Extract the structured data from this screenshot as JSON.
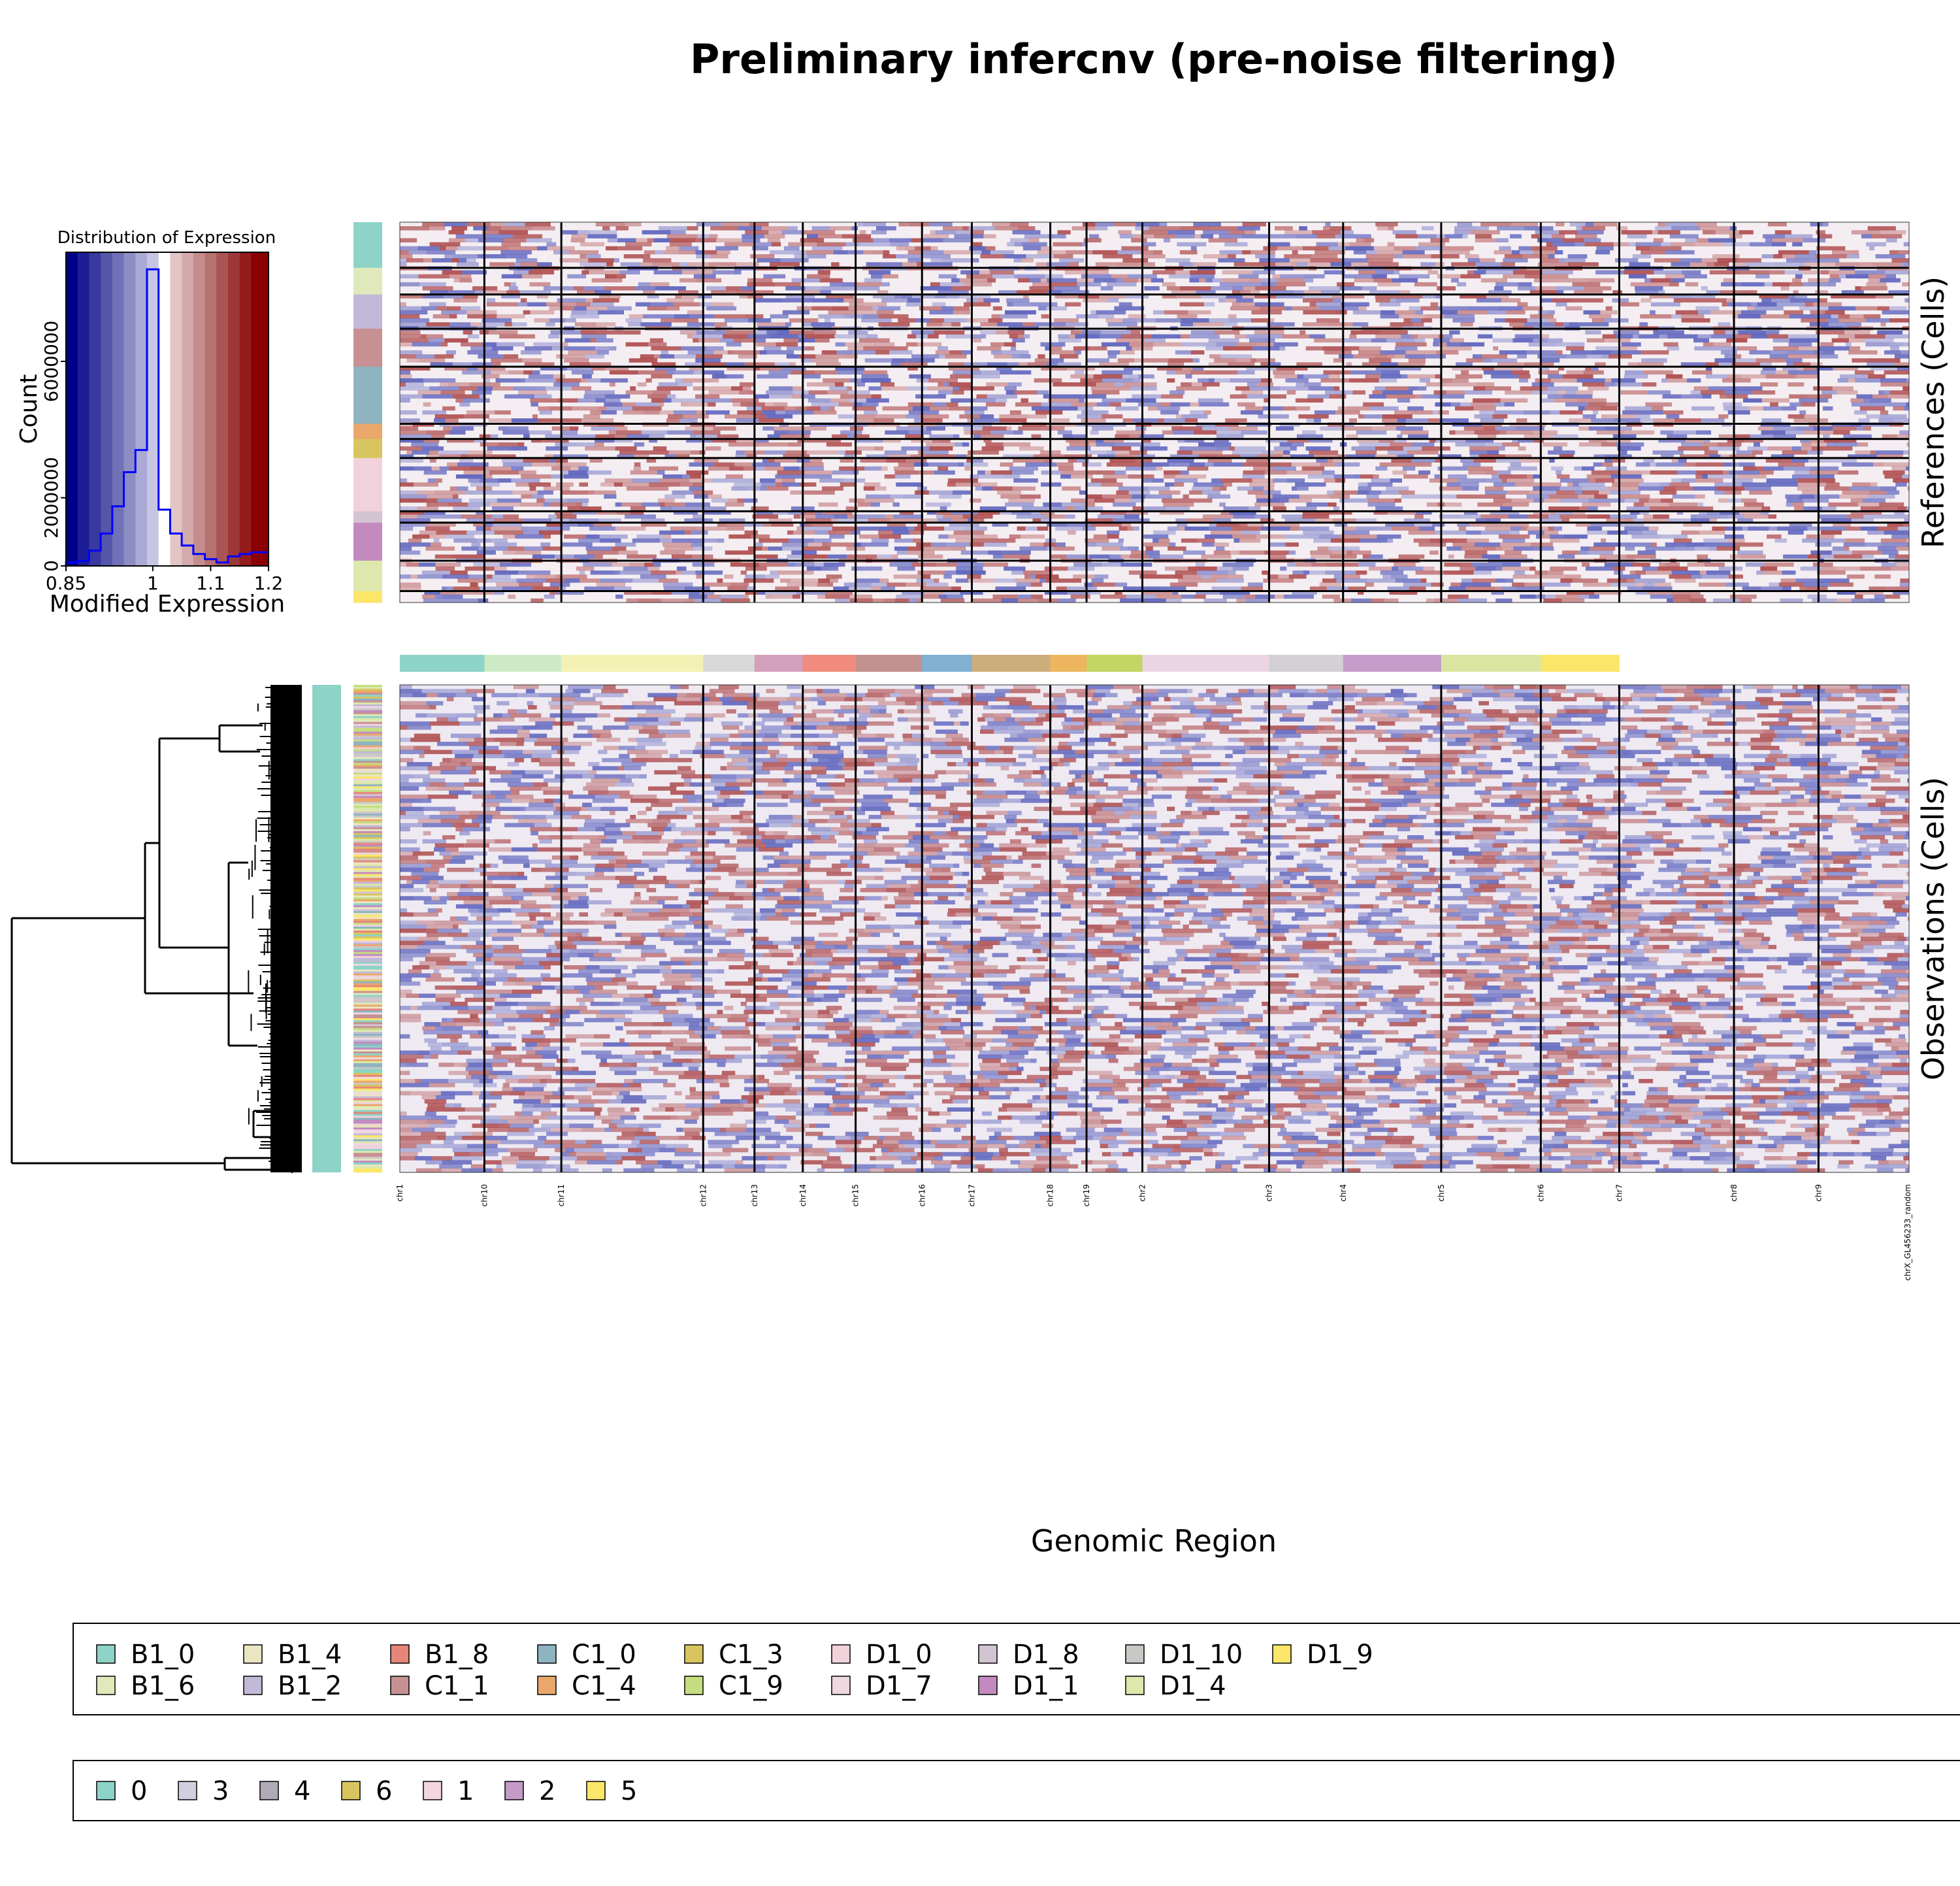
{
  "title": "Preliminary infercnv (pre-noise filtering)",
  "chart_data": {
    "type": "heatmap",
    "title": "Preliminary infercnv (pre-noise filtering)",
    "xlabel": "Genomic Region",
    "references_label": "References (Cells)",
    "observations_label": "Observations (Cells)",
    "chromosomes": [
      {
        "name": "chr1",
        "start": 0.0,
        "end": 0.056,
        "color": "#8dd3c7"
      },
      {
        "name": "chr10",
        "start": 0.056,
        "end": 0.107,
        "color": "#ccebc5"
      },
      {
        "name": "chr11",
        "start": 0.107,
        "end": 0.201,
        "color": "#f3f2b4"
      },
      {
        "name": "chr12",
        "start": 0.201,
        "end": 0.235,
        "color": "#d9d9d9"
      },
      {
        "name": "chr13",
        "start": 0.235,
        "end": 0.267,
        "color": "#d3a0bc"
      },
      {
        "name": "chr14",
        "start": 0.267,
        "end": 0.302,
        "color": "#f08b7e"
      },
      {
        "name": "chr15",
        "start": 0.302,
        "end": 0.346,
        "color": "#c2918f"
      },
      {
        "name": "chr16",
        "start": 0.346,
        "end": 0.379,
        "color": "#80b1d3"
      },
      {
        "name": "chr17",
        "start": 0.379,
        "end": 0.431,
        "color": "#ccad7c"
      },
      {
        "name": "chr18",
        "start": 0.431,
        "end": 0.455,
        "color": "#edb65e"
      },
      {
        "name": "chr19",
        "start": 0.455,
        "end": 0.492,
        "color": "#c3d664"
      },
      {
        "name": "chr2",
        "start": 0.492,
        "end": 0.576,
        "color": "#ebd5e2"
      },
      {
        "name": "chr3",
        "start": 0.576,
        "end": 0.625,
        "color": "#d4d0d4"
      },
      {
        "name": "chr4",
        "start": 0.625,
        "end": 0.69,
        "color": "#c59cc9"
      },
      {
        "name": "chr5",
        "start": 0.69,
        "end": 0.756,
        "color": "#dae5a2"
      },
      {
        "name": "chr6",
        "start": 0.756,
        "end": 0.808,
        "color": "#fbe66a"
      },
      {
        "name": "chr7",
        "start": 0.808,
        "end": 0.884,
        "color": "#ffffff"
      },
      {
        "name": "chr8",
        "start": 0.884,
        "end": 0.94,
        "color": "#ffffff"
      },
      {
        "name": "chr9",
        "start": 0.94,
        "end": 0.999,
        "color": "#ffffff"
      },
      {
        "name": "chrX_GL456233_random",
        "start": 0.999,
        "end": 1.0,
        "color": "#ffffff"
      }
    ],
    "reference_groups": [
      {
        "name": "B1_0",
        "fraction": 0.12,
        "color": "#8dd3c7"
      },
      {
        "name": "B1_6",
        "fraction": 0.07,
        "color": "#dfe9bb"
      },
      {
        "name": "B1_2",
        "fraction": 0.09,
        "color": "#c2b9d9"
      },
      {
        "name": "C1_1",
        "fraction": 0.1,
        "color": "#c79193"
      },
      {
        "name": "C1_0",
        "fraction": 0.15,
        "color": "#8eb4c2"
      },
      {
        "name": "C1_4",
        "fraction": 0.04,
        "color": "#e9a76c"
      },
      {
        "name": "C1_3",
        "fraction": 0.05,
        "color": "#d9c55f"
      },
      {
        "name": "D1_0",
        "fraction": 0.14,
        "color": "#f1d2da"
      },
      {
        "name": "D1_8",
        "fraction": 0.03,
        "color": "#d3c4d1"
      },
      {
        "name": "D1_1",
        "fraction": 0.1,
        "color": "#c38ac0"
      },
      {
        "name": "D1_4",
        "fraction": 0.08,
        "color": "#dce8ac"
      },
      {
        "name": "D1_9",
        "fraction": 0.03,
        "color": "#fbe66a"
      }
    ],
    "histogram": {
      "title": "Distribution of Expression",
      "xlabel": "Modified Expression",
      "ylabel": "Count",
      "xlim": [
        0.85,
        1.2
      ],
      "ylim": [
        0,
        9200000
      ],
      "x_ticks": [
        {
          "v": 0.85,
          "l": "0.85"
        },
        {
          "v": 1.0,
          "l": "1"
        },
        {
          "v": 1.1,
          "l": "1.1"
        },
        {
          "v": 1.2,
          "l": "1.2"
        }
      ],
      "y_ticks": [
        {
          "v": 0,
          "l": "0"
        },
        {
          "v": 2000000,
          "l": "2000000"
        },
        {
          "v": 6000000,
          "l": "6000000"
        }
      ],
      "bin_edges": [
        0.85,
        0.87,
        0.89,
        0.91,
        0.93,
        0.95,
        0.97,
        0.99,
        1.01,
        1.03,
        1.05,
        1.07,
        1.09,
        1.11,
        1.13,
        1.15,
        1.17,
        1.19,
        1.2
      ],
      "counts": [
        100000,
        150000,
        450000,
        950000,
        1750000,
        2750000,
        3400000,
        8700000,
        1650000,
        950000,
        600000,
        350000,
        200000,
        100000,
        280000,
        350000,
        400000,
        400000
      ],
      "colors": [
        "#00008b",
        "#1c1c94",
        "#38389e",
        "#5555aa",
        "#7171b7",
        "#8d8dc4",
        "#aaaad4",
        "#c6c6e2",
        "#ffffff",
        "#e2c6c6",
        "#d4aaaa",
        "#c48d8d",
        "#b77171",
        "#aa5555",
        "#9e3838",
        "#941c1c",
        "#8b0000",
        "#8b0000"
      ]
    },
    "observation_group_legend": [
      "B1_0",
      "B1_4",
      "B1_8",
      "C1_0",
      "C1_3",
      "D1_0",
      "D1_8",
      "D1_10",
      "D1_9",
      "B1_6",
      "B1_2",
      "C1_1",
      "C1_4",
      "C1_9",
      "D1_7",
      "D1_1",
      "D1_4"
    ],
    "observation_group_colors": [
      "#8dd3c7",
      "#eae6c2",
      "#e6857a",
      "#8eb4c2",
      "#d9c55f",
      "#f1d2da",
      "#d3c4d1",
      "#c9c8c5",
      "#fbe66a",
      "#dfe9bb",
      "#c2b9d9",
      "#c79193",
      "#e9a76c",
      "#c5de7f",
      "#efd8e0",
      "#c38ac0",
      "#dce8ac"
    ],
    "cluster_legend": [
      "0",
      "3",
      "4",
      "6",
      "1",
      "2",
      "5"
    ],
    "cluster_colors": [
      "#8dd3c7",
      "#cfcfe0",
      "#b0a9b7",
      "#d9c55f",
      "#f4d6e3",
      "#c49ac7",
      "#fbe66a"
    ]
  }
}
